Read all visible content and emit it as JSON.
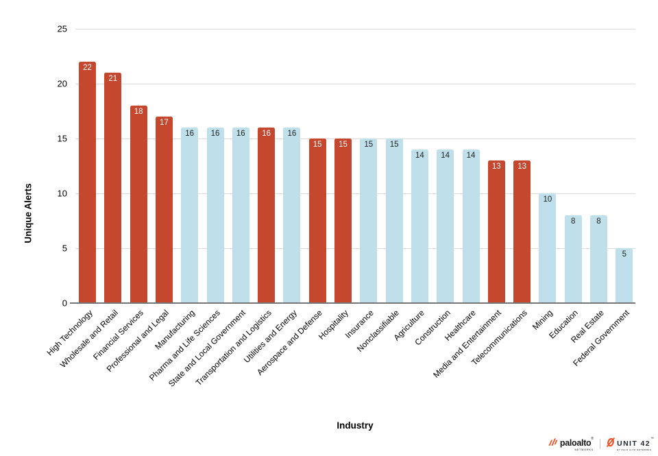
{
  "chart_data": {
    "type": "bar",
    "title": "",
    "xlabel": "Industry",
    "ylabel": "Unique Alerts",
    "ylim": [
      0,
      25
    ],
    "yticks": [
      0,
      5,
      10,
      15,
      20,
      25
    ],
    "grid": true,
    "legend_position": "none",
    "categories": [
      "High Technology",
      "Wholesale and Retail",
      "Financial Services",
      "Professional and Legal",
      "Manufacturing",
      "Pharma and Life Sciences",
      "State and Local Government",
      "Transportation and Logistics",
      "Utilities and Energy",
      "Aerospace and Defense",
      "Hospitality",
      "Insurance",
      "Nonclassifiable",
      "Agriculture",
      "Construction",
      "Healthcare",
      "Media and Entertainment",
      "Telecommunications",
      "Mining",
      "Education",
      "Real Estate",
      "Federal Government"
    ],
    "values": [
      22,
      21,
      18,
      17,
      16,
      16,
      16,
      16,
      16,
      15,
      15,
      15,
      15,
      14,
      14,
      14,
      13,
      13,
      10,
      8,
      8,
      5
    ],
    "highlighted": [
      true,
      true,
      true,
      true,
      false,
      false,
      false,
      true,
      false,
      true,
      true,
      false,
      false,
      false,
      false,
      false,
      true,
      true,
      false,
      false,
      false,
      false
    ],
    "colors": {
      "highlight_bar": "#C4472E",
      "normal_bar": "#BFE0EB",
      "highlight_label": "#FFFFFF",
      "normal_label": "#1F1F1F",
      "gridline": "#D9D9D9",
      "axis_line": "#757575"
    }
  },
  "footer": {
    "paloalto_name": "paloalto",
    "paloalto_reg": "®",
    "paloalto_sub": "NETWORKS",
    "unit42_name": "UNIT 42",
    "unit42_reg": "™",
    "unit42_sub": "BY PALO ALTO NETWORKS",
    "brand_orange": "#F04E23"
  }
}
